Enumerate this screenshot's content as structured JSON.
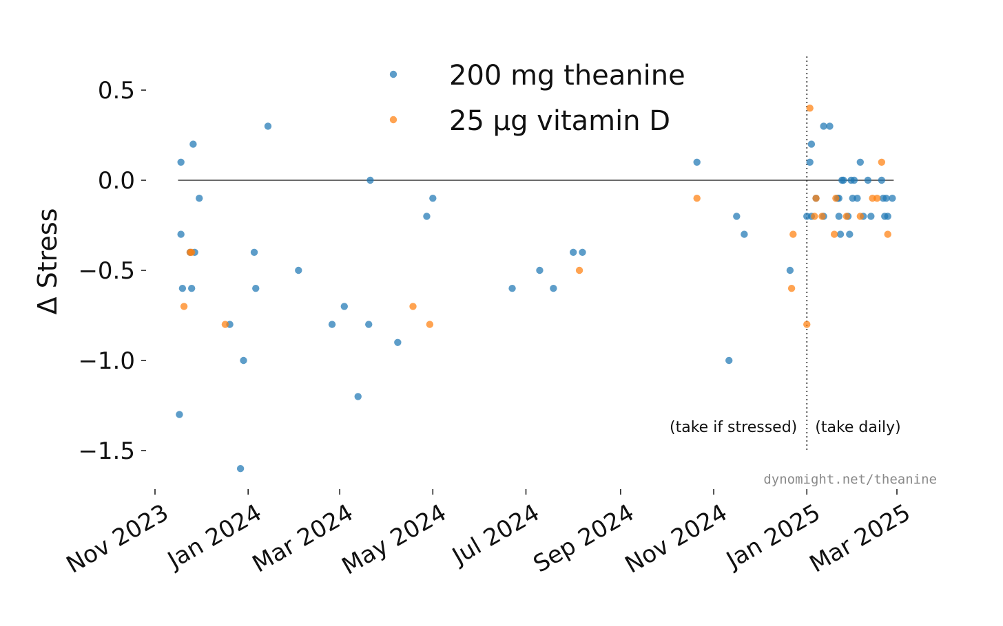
{
  "chart_data": {
    "type": "scatter",
    "ylabel": "Δ Stress",
    "xlabel": "",
    "title": "",
    "ylim": [
      -1.75,
      0.6
    ],
    "xlim": [
      "2023-10-16",
      "2025-03-16"
    ],
    "yticks": [
      0.5,
      0.0,
      -0.5,
      -1.0,
      -1.5
    ],
    "ytick_labels": [
      "0.5",
      "0.0",
      "−0.5",
      "−1.0",
      "−1.5"
    ],
    "xticks": [
      "2023-11-01",
      "2024-01-01",
      "2024-03-01",
      "2024-05-01",
      "2024-07-01",
      "2024-09-01",
      "2024-11-01",
      "2025-01-01",
      "2025-03-01"
    ],
    "xtick_labels": [
      "Nov 2023",
      "Jan 2024",
      "Mar 2024",
      "May 2024",
      "Jul 2024",
      "Sep 2024",
      "Nov 2024",
      "Jan 2025",
      "Mar 2025"
    ],
    "zero_line": 0.0,
    "grid": false,
    "legend_position": "top-center",
    "vline": {
      "x": "2025-01-01",
      "style": "dotted",
      "left_label": "(take if stressed)",
      "right_label": "(take daily)"
    },
    "watermark": "dynomight.net/theanine",
    "series": [
      {
        "name": "200 mg theanine",
        "color": "#1f77b4",
        "points": [
          [
            "2023-11-17",
            -1.3
          ],
          [
            "2023-11-18",
            0.1
          ],
          [
            "2023-11-18",
            -0.3
          ],
          [
            "2023-11-19",
            -0.6
          ],
          [
            "2023-11-24",
            -0.4
          ],
          [
            "2023-11-25",
            -0.6
          ],
          [
            "2023-11-26",
            0.2
          ],
          [
            "2023-11-27",
            -0.4
          ],
          [
            "2023-11-30",
            -0.1
          ],
          [
            "2023-12-20",
            -0.8
          ],
          [
            "2023-12-27",
            -1.6
          ],
          [
            "2023-12-29",
            -1.0
          ],
          [
            "2024-01-05",
            -0.4
          ],
          [
            "2024-01-06",
            -0.6
          ],
          [
            "2024-01-14",
            0.3
          ],
          [
            "2024-02-03",
            -0.5
          ],
          [
            "2024-02-25",
            -0.8
          ],
          [
            "2024-03-04",
            -0.7
          ],
          [
            "2024-03-13",
            -1.2
          ],
          [
            "2024-03-20",
            -0.8
          ],
          [
            "2024-03-21",
            0.0
          ],
          [
            "2024-04-08",
            -0.9
          ],
          [
            "2024-04-27",
            -0.2
          ],
          [
            "2024-05-01",
            -0.1
          ],
          [
            "2024-06-22",
            -0.6
          ],
          [
            "2024-07-10",
            -0.5
          ],
          [
            "2024-07-19",
            -0.6
          ],
          [
            "2024-08-01",
            -0.4
          ],
          [
            "2024-08-07",
            -0.4
          ],
          [
            "2024-10-21",
            0.1
          ],
          [
            "2024-11-11",
            -1.0
          ],
          [
            "2024-11-16",
            -0.2
          ],
          [
            "2024-11-21",
            -0.3
          ],
          [
            "2024-12-21",
            -0.5
          ],
          [
            "2025-01-01",
            -0.2
          ],
          [
            "2025-01-03",
            0.1
          ],
          [
            "2025-01-04",
            0.2
          ],
          [
            "2025-01-04",
            -0.2
          ],
          [
            "2025-01-07",
            -0.1
          ],
          [
            "2025-01-12",
            0.3
          ],
          [
            "2025-01-12",
            -0.2
          ],
          [
            "2025-01-16",
            0.3
          ],
          [
            "2025-01-21",
            -0.1
          ],
          [
            "2025-01-22",
            -0.2
          ],
          [
            "2025-01-22",
            -0.1
          ],
          [
            "2025-01-23",
            -0.3
          ],
          [
            "2025-01-24",
            0.0
          ],
          [
            "2025-01-25",
            0.0
          ],
          [
            "2025-01-28",
            -0.2
          ],
          [
            "2025-01-29",
            -0.3
          ],
          [
            "2025-01-30",
            0.0
          ],
          [
            "2025-01-31",
            -0.1
          ],
          [
            "2025-02-01",
            0.0
          ],
          [
            "2025-02-03",
            -0.1
          ],
          [
            "2025-02-05",
            0.1
          ],
          [
            "2025-02-07",
            -0.2
          ],
          [
            "2025-02-10",
            0.0
          ],
          [
            "2025-02-12",
            -0.2
          ],
          [
            "2025-02-19",
            0.0
          ],
          [
            "2025-02-20",
            -0.1
          ],
          [
            "2025-02-21",
            -0.2
          ],
          [
            "2025-02-22",
            -0.1
          ],
          [
            "2025-02-23",
            -0.2
          ],
          [
            "2025-02-26",
            -0.1
          ]
        ]
      },
      {
        "name": "25 μg vitamin D",
        "color": "#ff7f0e",
        "points": [
          [
            "2023-11-20",
            -0.7
          ],
          [
            "2023-11-24",
            -0.4
          ],
          [
            "2023-11-25",
            -0.4
          ],
          [
            "2023-12-17",
            -0.8
          ],
          [
            "2024-04-18",
            -0.7
          ],
          [
            "2024-04-29",
            -0.8
          ],
          [
            "2024-08-05",
            -0.5
          ],
          [
            "2024-10-21",
            -0.1
          ],
          [
            "2024-12-22",
            -0.6
          ],
          [
            "2024-12-23",
            -0.3
          ],
          [
            "2025-01-01",
            -0.8
          ],
          [
            "2025-01-03",
            0.4
          ],
          [
            "2025-01-06",
            -0.2
          ],
          [
            "2025-01-07",
            -0.1
          ],
          [
            "2025-01-11",
            -0.2
          ],
          [
            "2025-01-19",
            -0.3
          ],
          [
            "2025-01-20",
            -0.1
          ],
          [
            "2025-01-27",
            -0.2
          ],
          [
            "2025-02-05",
            -0.2
          ],
          [
            "2025-02-13",
            -0.1
          ],
          [
            "2025-02-16",
            -0.1
          ],
          [
            "2025-02-19",
            0.1
          ],
          [
            "2025-02-23",
            -0.3
          ]
        ]
      }
    ]
  }
}
